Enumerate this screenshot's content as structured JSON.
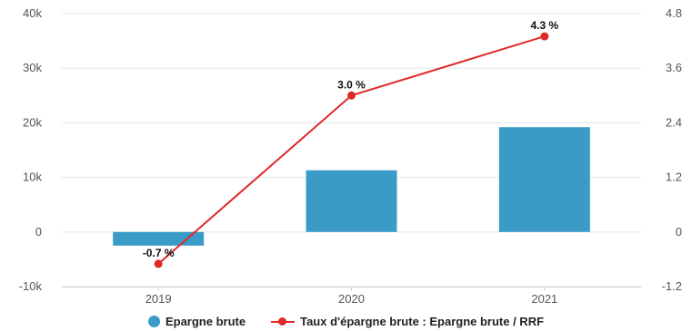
{
  "chart_data": {
    "type": "bar",
    "categories": [
      "2019",
      "2020",
      "2021"
    ],
    "series": [
      {
        "name": "Epargne brute",
        "type": "bar",
        "axis": "left",
        "values": [
          -2500,
          11300,
          19200
        ]
      },
      {
        "name": "Taux d'épargne brute : Epargne brute / RRF",
        "type": "line",
        "axis": "right",
        "values": [
          -0.7,
          3.0,
          4.3
        ],
        "labels": [
          "-0.7 %",
          "3.0 %",
          "4.3 %"
        ]
      }
    ],
    "y_left": {
      "ticks": [
        "40k",
        "30k",
        "20k",
        "10k",
        "0",
        "-10k"
      ],
      "values": [
        40000,
        30000,
        20000,
        10000,
        0,
        -10000
      ],
      "range": [
        -10000,
        40000
      ]
    },
    "y_right": {
      "ticks": [
        "4.8",
        "3.6",
        "2.4",
        "1.2",
        "0",
        "-1.2"
      ],
      "values": [
        4.8,
        3.6,
        2.4,
        1.2,
        0,
        -1.2
      ],
      "range": [
        -1.2,
        4.8
      ]
    },
    "grid": true,
    "legend": "bottom-center",
    "colors": {
      "bar": "#3a9cc6",
      "line": "#e02a2a",
      "grid": "#e6e6e6"
    }
  }
}
